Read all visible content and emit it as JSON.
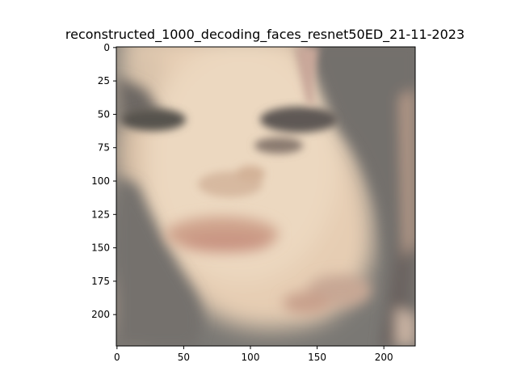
{
  "figure": {
    "title": "reconstructed_1000_decoding_faces_resnet50ED_21-11-2023"
  },
  "chart_data": {
    "type": "image",
    "title": "reconstructed_1000_decoding_faces_resnet50ED_21-11-2023",
    "xlabel": "",
    "ylabel": "",
    "image_size": [
      224,
      224
    ],
    "xlim": [
      -0.5,
      223.5
    ],
    "ylim": [
      223.5,
      -0.5
    ],
    "x_ticks": [
      0,
      50,
      100,
      150,
      200
    ],
    "y_ticks": [
      0,
      25,
      50,
      75,
      100,
      125,
      150,
      175,
      200
    ],
    "grid": false,
    "colors": {
      "background_gray": "#7a7874",
      "skin_light": "#ecd8c0",
      "skin_mid": "#d9b49a",
      "lip": "#c99482",
      "eye_dark": "#57524d"
    }
  }
}
